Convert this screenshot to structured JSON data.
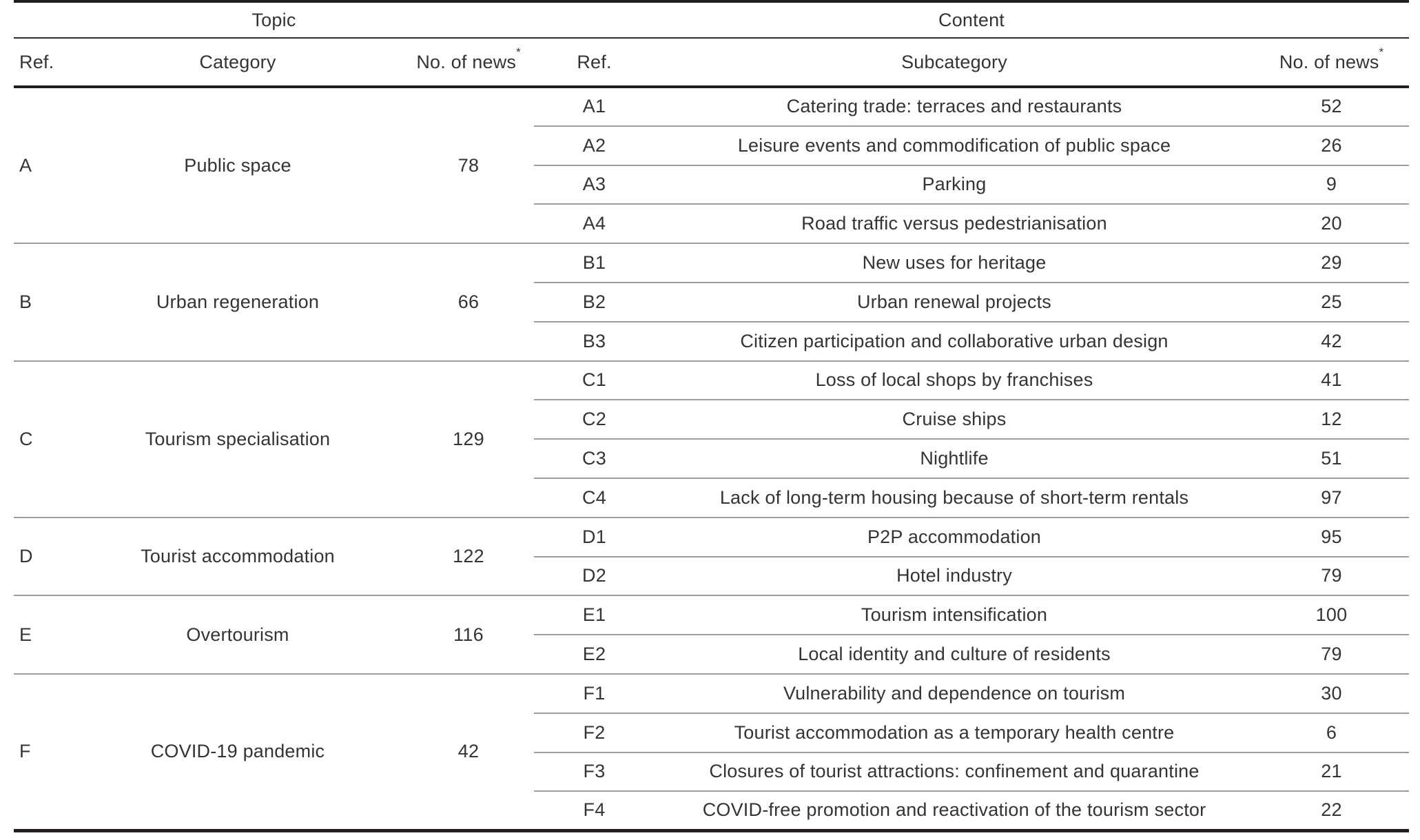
{
  "table": {
    "group_headers": [
      {
        "label": "Topic"
      },
      {
        "label": "Content"
      }
    ],
    "column_headers": [
      {
        "label": "Ref.",
        "sup": ""
      },
      {
        "label": "Category",
        "sup": ""
      },
      {
        "label": "No. of news",
        "sup": "*"
      },
      {
        "label": "Ref.",
        "sup": ""
      },
      {
        "label": "Subcategory",
        "sup": ""
      },
      {
        "label": "No. of news",
        "sup": "*"
      }
    ],
    "groups": [
      {
        "ref": "A",
        "category": "Public space",
        "count": "78",
        "subrows": [
          {
            "ref": "A1",
            "subcategory": "Catering trade: terraces and restaurants",
            "count": "52"
          },
          {
            "ref": "A2",
            "subcategory": "Leisure events and commodification of public space",
            "count": "26"
          },
          {
            "ref": "A3",
            "subcategory": "Parking",
            "count": "9"
          },
          {
            "ref": "A4",
            "subcategory": "Road traffic versus pedestrianisation",
            "count": "20"
          }
        ]
      },
      {
        "ref": "B",
        "category": "Urban regeneration",
        "count": "66",
        "subrows": [
          {
            "ref": "B1",
            "subcategory": "New uses for heritage",
            "count": "29"
          },
          {
            "ref": "B2",
            "subcategory": "Urban renewal projects",
            "count": "25"
          },
          {
            "ref": "B3",
            "subcategory": "Citizen participation and collaborative urban design",
            "count": "42"
          }
        ]
      },
      {
        "ref": "C",
        "category": "Tourism specialisation",
        "count": "129",
        "subrows": [
          {
            "ref": "C1",
            "subcategory": "Loss of local shops by franchises",
            "count": "41"
          },
          {
            "ref": "C2",
            "subcategory": "Cruise ships",
            "count": "12"
          },
          {
            "ref": "C3",
            "subcategory": "Nightlife",
            "count": "51"
          },
          {
            "ref": "C4",
            "subcategory": "Lack of long-term housing because of short-term rentals",
            "count": "97"
          }
        ]
      },
      {
        "ref": "D",
        "category": "Tourist accommodation",
        "count": "122",
        "subrows": [
          {
            "ref": "D1",
            "subcategory": "P2P accommodation",
            "count": "95"
          },
          {
            "ref": "D2",
            "subcategory": "Hotel industry",
            "count": "79"
          }
        ]
      },
      {
        "ref": "E",
        "category": "Overtourism",
        "count": "116",
        "subrows": [
          {
            "ref": "E1",
            "subcategory": "Tourism intensification",
            "count": "100"
          },
          {
            "ref": "E2",
            "subcategory": "Local identity and culture of residents",
            "count": "79"
          }
        ]
      },
      {
        "ref": "F",
        "category": "COVID-19 pandemic",
        "count": "42",
        "subrows": [
          {
            "ref": "F1",
            "subcategory": "Vulnerability and dependence on tourism",
            "count": "30"
          },
          {
            "ref": "F2",
            "subcategory": "Tourist accommodation as a temporary health centre",
            "count": "6"
          },
          {
            "ref": "F3",
            "subcategory": "Closures of tourist attractions: confinement and quarantine",
            "count": "21"
          },
          {
            "ref": "F4",
            "subcategory": "COVID-free promotion and reactivation of the tourism sector",
            "count": "22"
          }
        ]
      }
    ]
  }
}
